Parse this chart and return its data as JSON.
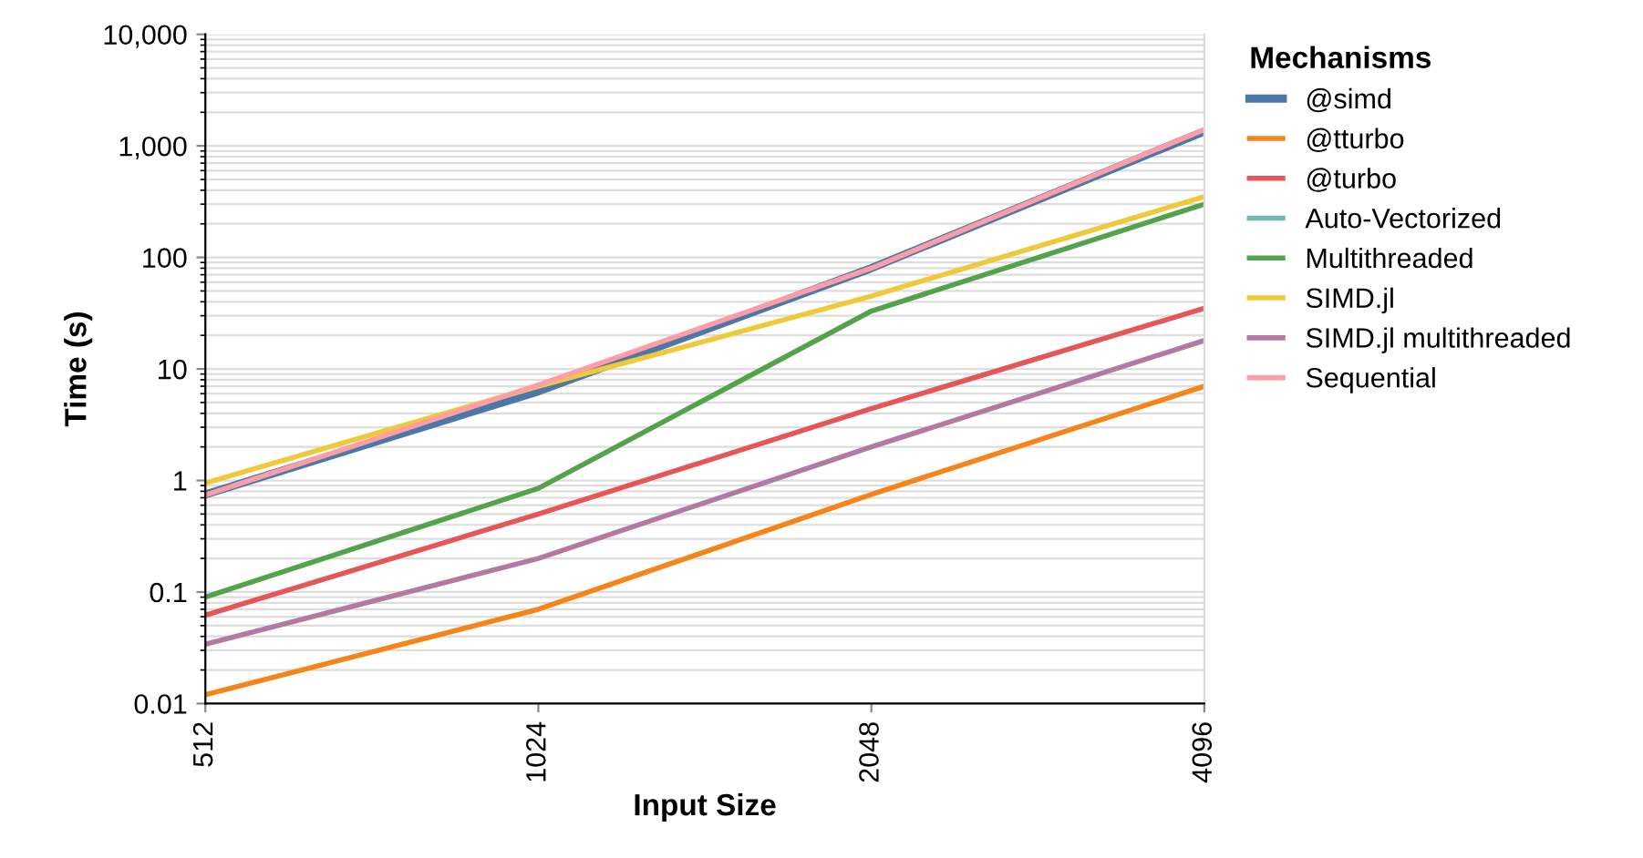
{
  "chart_data": {
    "type": "line",
    "xlabel": "Input Size",
    "ylabel": "Time (s)",
    "legend_title": "Mechanisms",
    "categories": [
      "512",
      "1024",
      "2048",
      "4096"
    ],
    "series": [
      {
        "name": "@simd",
        "color": "#4c78a8",
        "values": [
          0.75,
          6.3,
          80,
          1350
        ]
      },
      {
        "name": "@tturbo",
        "color": "#f58518",
        "values": [
          0.012,
          0.07,
          0.75,
          7
        ]
      },
      {
        "name": "@turbo",
        "color": "#e45756",
        "values": [
          0.062,
          0.5,
          4.4,
          35
        ]
      },
      {
        "name": "Auto-Vectorized",
        "color": "#72b7b2",
        "values": [
          null,
          null,
          null,
          null
        ]
      },
      {
        "name": "Multithreaded",
        "color": "#54a24b",
        "values": [
          0.09,
          0.85,
          33,
          300
        ]
      },
      {
        "name": "SIMD.jl",
        "color": "#eeca3b",
        "values": [
          0.95,
          7,
          45,
          350
        ]
      },
      {
        "name": "SIMD.jl multithreaded",
        "color": "#b279a2",
        "values": [
          0.034,
          0.2,
          2.0,
          18
        ]
      },
      {
        "name": "Sequential",
        "color": "#ff9da6",
        "values": [
          0.74,
          7.2,
          80,
          1400
        ]
      }
    ],
    "log": "y",
    "ylim": [
      0.01,
      10000
    ],
    "yticks": [
      0.01,
      0.1,
      1,
      10,
      {
        "value": 100,
        "label": "100"
      },
      {
        "value": 1000,
        "label": "1,000"
      },
      {
        "value": 10000,
        "label": "10,000"
      }
    ],
    "grid": "y",
    "legend": "top right",
    "marker": "none",
    "line_style": "solid"
  }
}
